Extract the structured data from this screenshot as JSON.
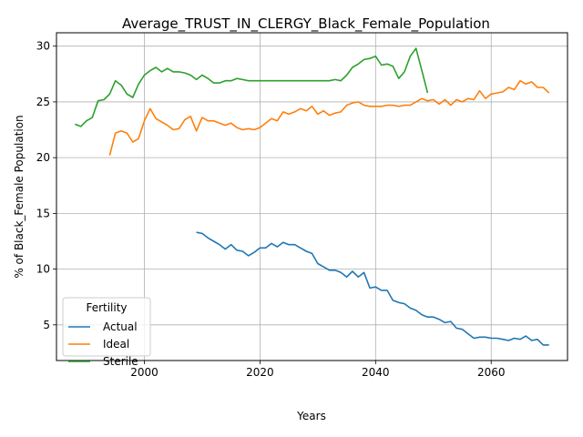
{
  "chart_data": {
    "type": "line",
    "title": "Average_TRUST_IN_CLERGY_Black_Female_Population",
    "xlabel": "Years",
    "ylabel": "% of Black_Female Population",
    "xlim": [
      1984.8,
      2073.2
    ],
    "ylim": [
      1.8,
      31.2
    ],
    "xticks": [
      2000,
      2020,
      2040,
      2060
    ],
    "yticks": [
      5,
      10,
      15,
      20,
      25,
      30
    ],
    "grid": true,
    "legend": {
      "title": "Fertility",
      "position": "lower-left"
    },
    "series": [
      {
        "name": "Actual",
        "color": "#1f77b4",
        "x": [
          2009,
          2010,
          2011,
          2012,
          2013,
          2014,
          2015,
          2016,
          2017,
          2018,
          2019,
          2020,
          2021,
          2022,
          2023,
          2024,
          2025,
          2026,
          2027,
          2028,
          2029,
          2030,
          2031,
          2032,
          2033,
          2034,
          2035,
          2036,
          2037,
          2038,
          2039,
          2040,
          2041,
          2042,
          2043,
          2044,
          2045,
          2046,
          2047,
          2048,
          2049,
          2050,
          2051,
          2052,
          2053,
          2054,
          2055,
          2056,
          2057,
          2058,
          2059,
          2060,
          2061,
          2062,
          2063,
          2064,
          2065,
          2066,
          2067,
          2068,
          2069,
          2070
        ],
        "values": [
          13.3,
          13.2,
          12.8,
          12.5,
          12.2,
          11.8,
          12.2,
          11.7,
          11.6,
          11.2,
          11.5,
          11.9,
          11.9,
          12.3,
          12.0,
          12.4,
          12.2,
          12.2,
          11.9,
          11.6,
          11.4,
          10.5,
          10.2,
          9.9,
          9.9,
          9.7,
          9.3,
          9.8,
          9.3,
          9.7,
          8.3,
          8.4,
          8.1,
          8.1,
          7.2,
          7.0,
          6.9,
          6.5,
          6.3,
          5.9,
          5.7,
          5.7,
          5.5,
          5.2,
          5.3,
          4.7,
          4.6,
          4.2,
          3.8,
          3.9,
          3.9,
          3.8,
          3.8,
          3.7,
          3.6,
          3.8,
          3.7,
          4.0,
          3.6,
          3.7,
          3.2,
          3.2
        ]
      },
      {
        "name": "Ideal",
        "color": "#ff7f0e",
        "x": [
          1994,
          1995,
          1996,
          1997,
          1998,
          1999,
          2000,
          2001,
          2002,
          2003,
          2004,
          2005,
          2006,
          2007,
          2008,
          2009,
          2010,
          2011,
          2012,
          2013,
          2014,
          2015,
          2016,
          2017,
          2018,
          2019,
          2020,
          2021,
          2022,
          2023,
          2024,
          2025,
          2026,
          2027,
          2028,
          2029,
          2030,
          2031,
          2032,
          2033,
          2034,
          2035,
          2036,
          2037,
          2038,
          2039,
          2040,
          2041,
          2042,
          2043,
          2044,
          2045,
          2046,
          2047,
          2048,
          2049,
          2050,
          2051,
          2052,
          2053,
          2054,
          2055,
          2056,
          2057,
          2058,
          2059,
          2060,
          2061,
          2062,
          2063,
          2064,
          2065,
          2066,
          2067,
          2068,
          2069,
          2070
        ],
        "values": [
          20.2,
          22.2,
          22.4,
          22.2,
          21.4,
          21.7,
          23.3,
          24.4,
          23.5,
          23.2,
          22.9,
          22.5,
          22.6,
          23.4,
          23.7,
          22.4,
          23.6,
          23.3,
          23.3,
          23.1,
          22.9,
          23.1,
          22.7,
          22.5,
          22.6,
          22.5,
          22.7,
          23.1,
          23.5,
          23.3,
          24.1,
          23.9,
          24.1,
          24.4,
          24.2,
          24.6,
          23.9,
          24.2,
          23.8,
          24.0,
          24.1,
          24.7,
          24.9,
          25.0,
          24.7,
          24.6,
          24.6,
          24.6,
          24.7,
          24.7,
          24.6,
          24.7,
          24.7,
          25.0,
          25.3,
          25.1,
          25.2,
          24.8,
          25.2,
          24.7,
          25.2,
          25.0,
          25.3,
          25.2,
          26.0,
          25.3,
          25.7,
          25.8,
          25.9,
          26.3,
          26.1,
          26.9,
          26.6,
          26.8,
          26.3,
          26.3,
          25.8
        ]
      },
      {
        "name": "Sterile",
        "color": "#2ca02c",
        "x": [
          1988,
          1989,
          1990,
          1991,
          1992,
          1993,
          1994,
          1995,
          1996,
          1997,
          1998,
          1999,
          2000,
          2001,
          2002,
          2003,
          2004,
          2005,
          2006,
          2007,
          2008,
          2009,
          2010,
          2011,
          2012,
          2013,
          2014,
          2015,
          2016,
          2017,
          2018,
          2019,
          2020,
          2021,
          2022,
          2023,
          2024,
          2025,
          2026,
          2027,
          2028,
          2029,
          2030,
          2031,
          2032,
          2033,
          2034,
          2035,
          2036,
          2037,
          2038,
          2039,
          2040,
          2041,
          2042,
          2043,
          2044,
          2045,
          2046,
          2047,
          2048,
          2049
        ],
        "values": [
          23.0,
          22.8,
          23.3,
          23.6,
          25.1,
          25.2,
          25.7,
          26.9,
          26.5,
          25.7,
          25.4,
          26.6,
          27.4,
          27.8,
          28.1,
          27.7,
          28.0,
          27.7,
          27.7,
          27.6,
          27.4,
          27.0,
          27.4,
          27.1,
          26.7,
          26.7,
          26.9,
          26.9,
          27.1,
          27.0,
          26.9,
          26.9,
          26.9,
          26.9,
          26.9,
          26.9,
          26.9,
          26.9,
          26.9,
          26.9,
          26.9,
          26.9,
          26.9,
          26.9,
          26.9,
          27.0,
          26.9,
          27.4,
          28.1,
          28.4,
          28.8,
          28.9,
          29.1,
          28.3,
          28.4,
          28.2,
          27.1,
          27.7,
          29.1,
          29.8,
          27.8,
          25.8
        ]
      }
    ]
  }
}
